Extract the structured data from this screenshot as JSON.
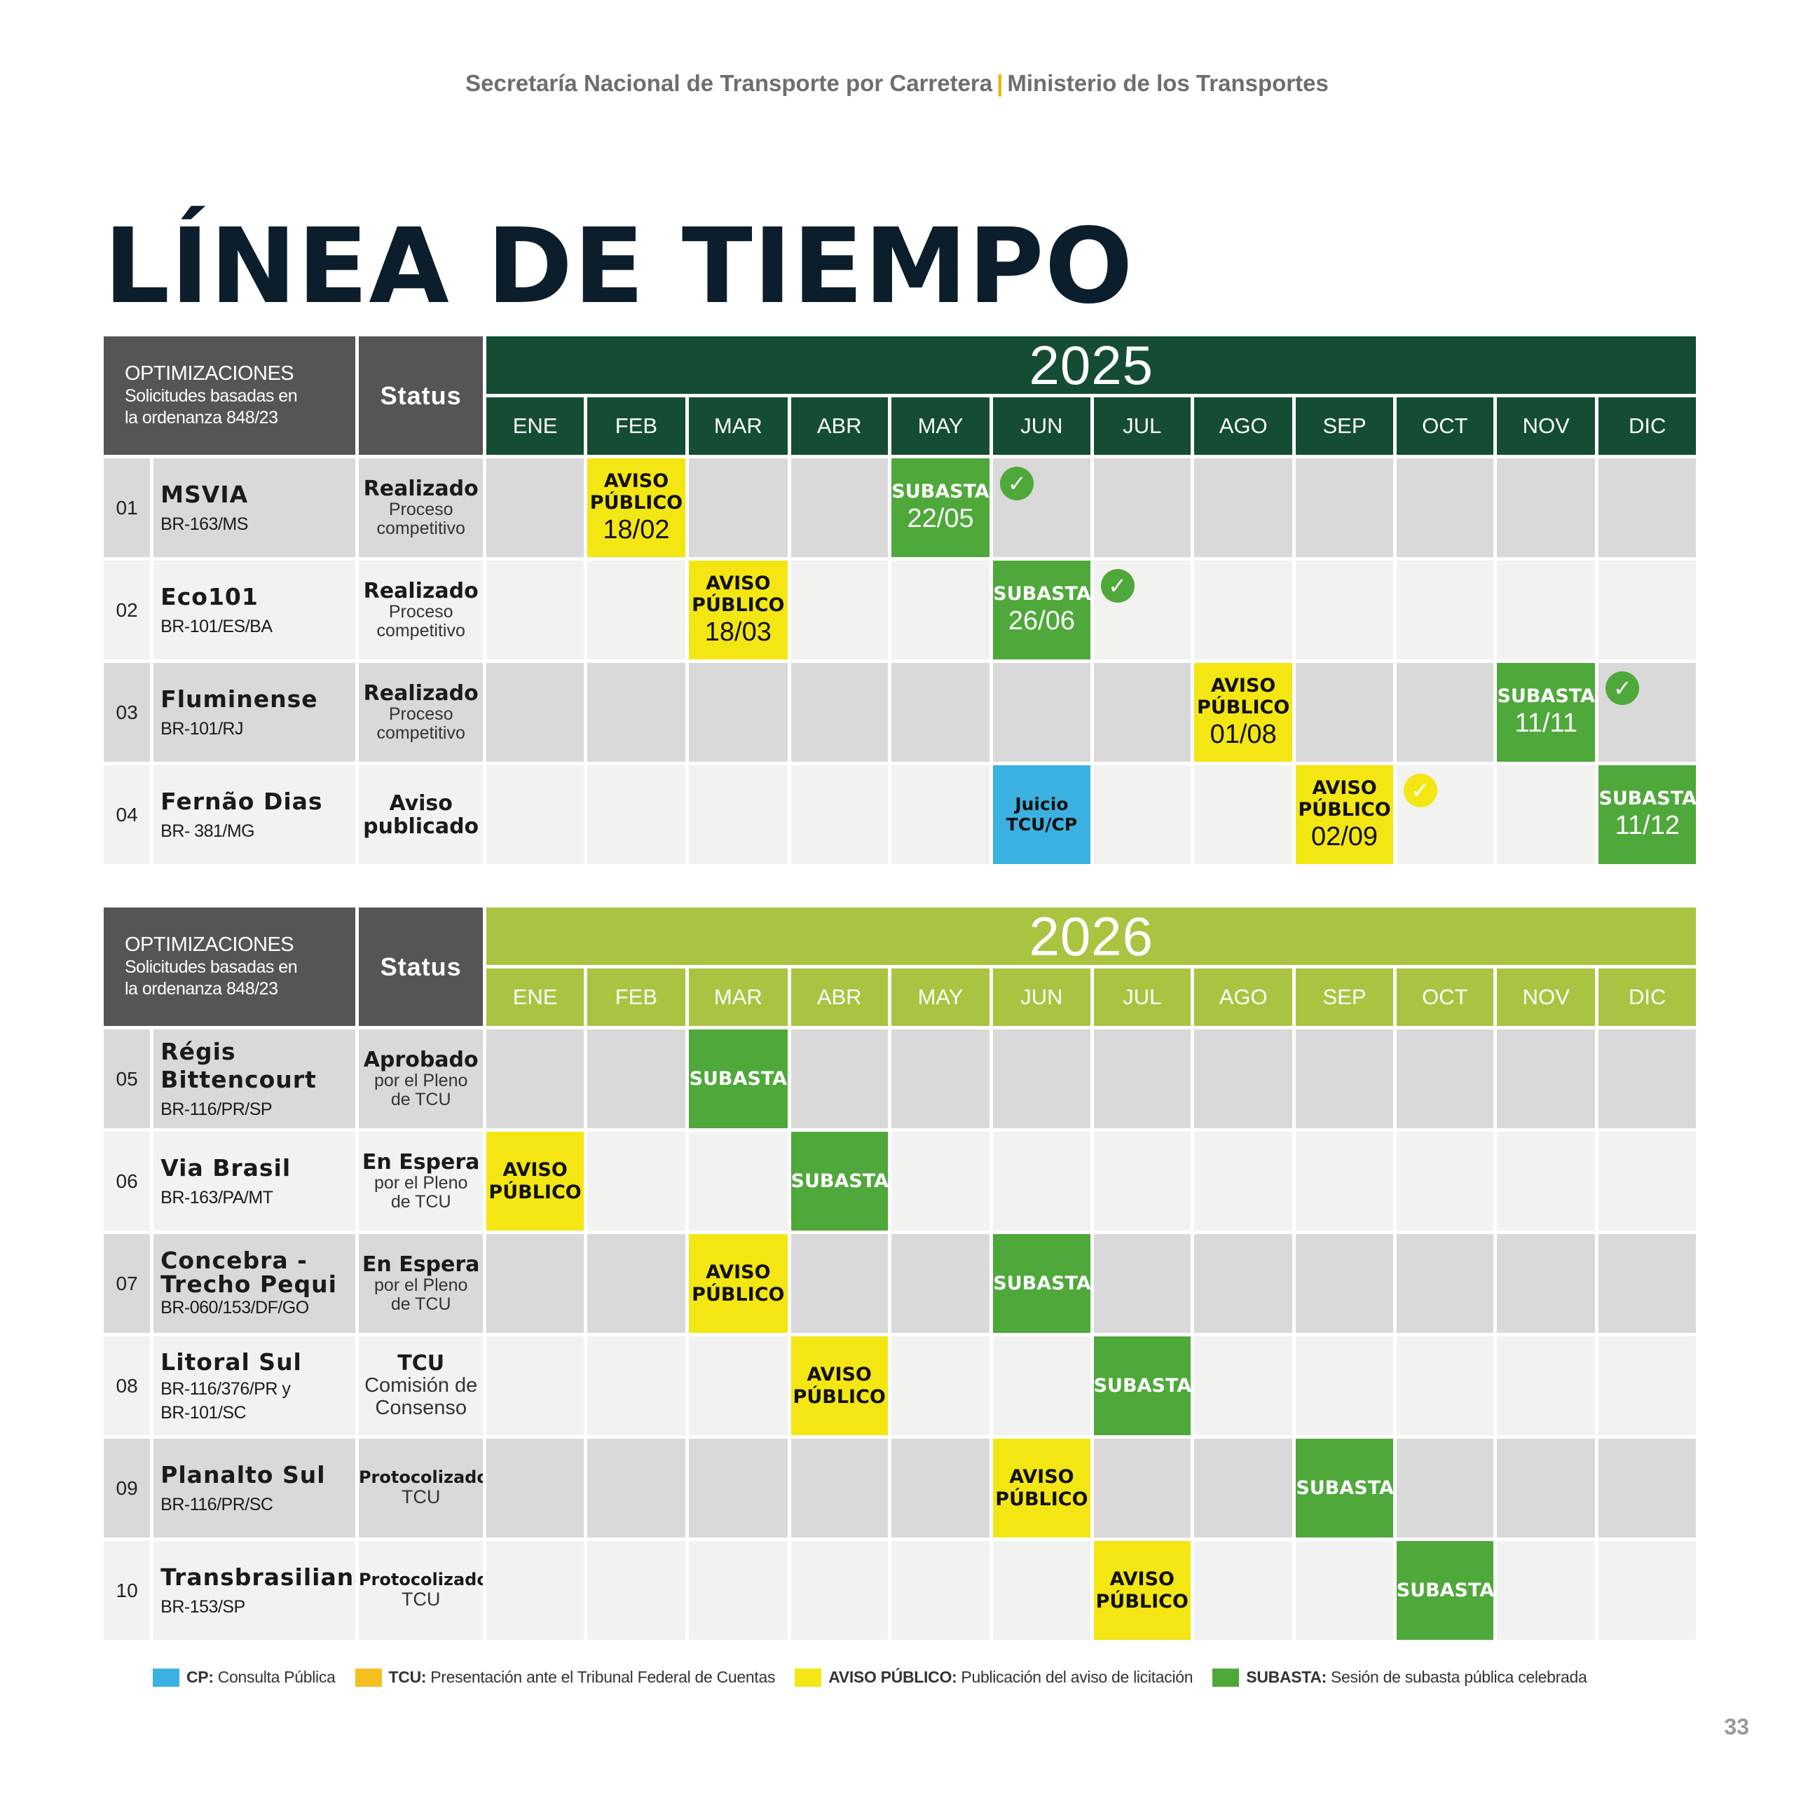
{
  "header": {
    "left": "Secretaría Nacional de Transporte por Carretera",
    "separator": "|",
    "right": "Ministerio de los Transportes"
  },
  "title": "LÍNEA DE TIEMPO",
  "table_header": {
    "opt_title": "OPTIMIZACIONES",
    "opt_sub1": "Solicitudes basadas en",
    "opt_sub2": "la ordenanza 848/23",
    "status": "Status"
  },
  "months": [
    "ENE",
    "FEB",
    "MAR",
    "ABR",
    "MAY",
    "JUN",
    "JUL",
    "AGO",
    "SEP",
    "OCT",
    "NOV",
    "DIC"
  ],
  "years": {
    "y2025": "2025",
    "y2026": "2026"
  },
  "labels": {
    "aviso1": "AVISO",
    "aviso2": "PÚBLICO",
    "subasta": "SUBASTA",
    "juicio1": "Juicio",
    "juicio2": "TCU/CP"
  },
  "rows": [
    {
      "num": "01",
      "name": "MSVIA",
      "road": "BR-163/MS",
      "status1": "Realizado",
      "status2": "Proceso",
      "status3": "competitivo",
      "events": {
        "FEB": "18/02",
        "MAY": "22/05"
      }
    },
    {
      "num": "02",
      "name": "Eco101",
      "road": "BR-101/ES/BA",
      "status1": "Realizado",
      "status2": "Proceso",
      "status3": "competitivo",
      "events": {
        "MAR": "18/03",
        "JUN": "26/06"
      }
    },
    {
      "num": "03",
      "name": "Fluminense",
      "road": "BR-101/RJ",
      "status1": "Realizado",
      "status2": "Proceso",
      "status3": "competitivo",
      "events": {
        "AGO": "01/08",
        "NOV": "11/11"
      }
    },
    {
      "num": "04",
      "name": "Fernão Dias",
      "road": "BR- 381/MG",
      "status1": "Aviso",
      "status2": "publicado",
      "events": {
        "SEP": "02/09",
        "DIC": "11/12"
      }
    },
    {
      "num": "05",
      "name1": "Régis",
      "name2": "Bittencourt",
      "road": "BR-116/PR/SP",
      "status1": "Aprobado",
      "status2": "por el Pleno",
      "status3": "de TCU"
    },
    {
      "num": "06",
      "name": "Via Brasil",
      "road": "BR-163/PA/MT",
      "status1": "En Espera",
      "status2": "por el Pleno",
      "status3": "de TCU"
    },
    {
      "num": "07",
      "name1": "Concebra -",
      "name2": "Trecho Pequi",
      "road": "BR-060/153/DF/GO",
      "status1": "En Espera",
      "status2": "por el Pleno",
      "status3": "de TCU"
    },
    {
      "num": "08",
      "name": "Litoral Sul",
      "road1": "BR-116/376/PR y",
      "road2": "BR-101/SC",
      "status1": "TCU",
      "status2": "Comisión de",
      "status3": "Consenso"
    },
    {
      "num": "09",
      "name": "Planalto Sul",
      "road": "BR-116/PR/SC",
      "status1": "Protocolizado",
      "status2": "TCU"
    },
    {
      "num": "10",
      "name": "Transbrasiliana",
      "road": "BR-153/SP",
      "status1": "Protocolizado",
      "status2": "TCU"
    }
  ],
  "legend": [
    {
      "key": "CP:",
      "text": "Consulta Pública",
      "color": "#3bb1e1"
    },
    {
      "key": "TCU:",
      "text": "Presentación ante el Tribunal Federal de Cuentas",
      "color": "#f5bf1f"
    },
    {
      "key": "AVISO PÚBLICO:",
      "text": "Publicación del aviso de licitación",
      "color": "#f3e613"
    },
    {
      "key": "SUBASTA:",
      "text": "Sesión de subasta pública celebrada",
      "color": "#4ea83a"
    }
  ],
  "colors": {
    "dark_green": "#144d33",
    "lime": "#a9c440",
    "header_gray": "#555555",
    "title_navy": "#0c1e2c"
  },
  "page_number": "33"
}
